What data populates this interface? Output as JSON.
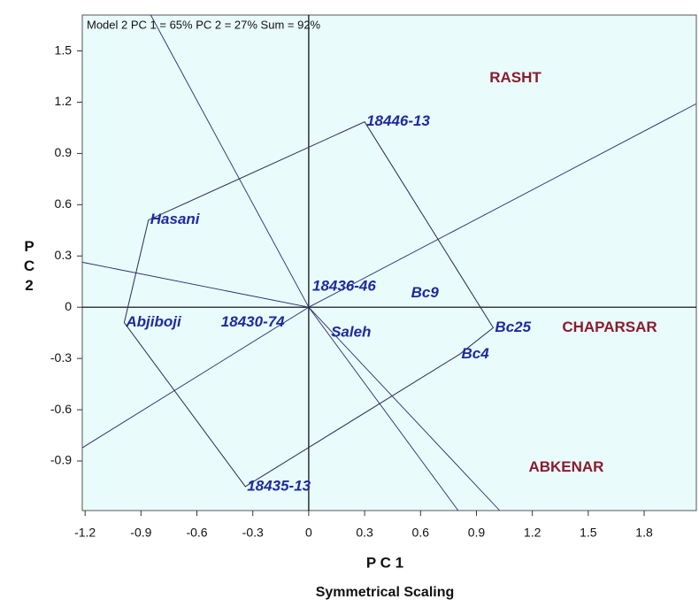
{
  "chart_data": {
    "type": "biplot",
    "title": "Model 2 PC 1 = 65% PC 2 = 27% Sum = 92%",
    "x_label": "P C 1",
    "y_label": "P C 2",
    "subtitle": "Symmetrical Scaling",
    "xlim": [
      -1.215,
      2.08
    ],
    "ylim": [
      -1.19,
      1.71
    ],
    "xticks": [
      -1.2,
      -0.9,
      -0.6,
      -0.3,
      0,
      0.3,
      0.6,
      0.9,
      1.2,
      1.5,
      1.8
    ],
    "yticks": [
      -0.9,
      -0.6,
      -0.3,
      0,
      0.3,
      0.6,
      0.9,
      1.2,
      1.5
    ],
    "genotypes": {
      "color": "#1f2a9c",
      "names": [
        "18446-13",
        "Hasani",
        "Abjiboji",
        "18435-13",
        "Bc4",
        "Bc25",
        "Bc9",
        "18436-46",
        "18430-74",
        "Saleh"
      ],
      "x": [
        0.3,
        -0.86,
        -0.99,
        -0.34,
        0.81,
        0.99,
        0.54,
        0.01,
        -0.48,
        0.11
      ],
      "y": [
        1.085,
        0.51,
        -0.09,
        -1.05,
        -0.275,
        -0.12,
        0.08,
        0.12,
        -0.09,
        -0.15
      ]
    },
    "environments": {
      "color": "#8b1a2e",
      "names": [
        "RASHT",
        "CHAPARSAR",
        "ABKENAR"
      ],
      "x": [
        0.97,
        1.36,
        1.18
      ],
      "y": [
        1.34,
        -0.12,
        -0.94
      ]
    }
  }
}
